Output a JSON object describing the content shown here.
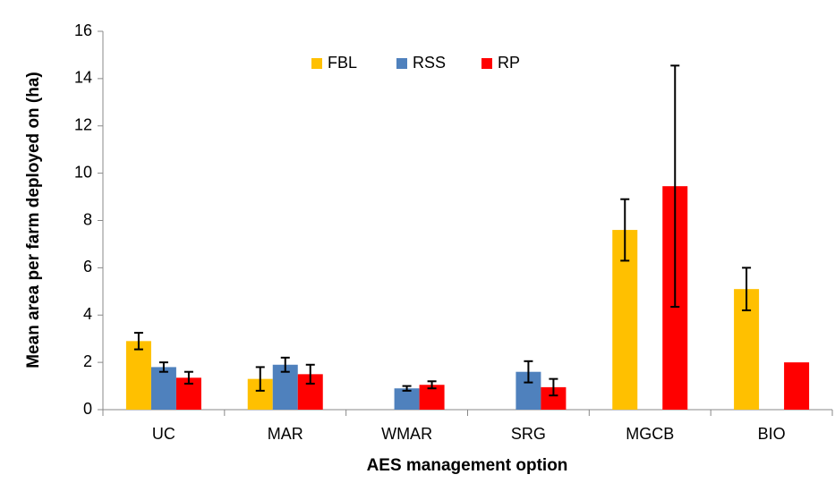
{
  "chart_data": {
    "type": "bar",
    "x_label": "AES management option",
    "y_label": "Mean area per farm deployed on (ha)",
    "categories": [
      "UC",
      "MAR",
      "WMAR",
      "SRG",
      "MGCB",
      "BIO"
    ],
    "series": [
      {
        "name": "FBL",
        "color": "#ffc000",
        "values": [
          2.9,
          1.3,
          null,
          null,
          7.6,
          5.1
        ],
        "errors": [
          0.35,
          0.5,
          null,
          null,
          1.3,
          0.9
        ]
      },
      {
        "name": "RSS",
        "color": "#4f81bd",
        "values": [
          1.8,
          1.9,
          0.9,
          1.6,
          null,
          null
        ],
        "errors": [
          0.2,
          0.3,
          0.1,
          0.45,
          null,
          null
        ]
      },
      {
        "name": "RP",
        "color": "#ff0000",
        "values": [
          1.35,
          1.5,
          1.05,
          0.95,
          9.45,
          2.0
        ],
        "errors": [
          0.25,
          0.4,
          0.15,
          0.35,
          5.1,
          null
        ]
      }
    ],
    "ylim": [
      0,
      16
    ],
    "yticks": [
      0,
      2,
      4,
      6,
      8,
      10,
      12,
      14,
      16
    ],
    "legend": "top"
  }
}
